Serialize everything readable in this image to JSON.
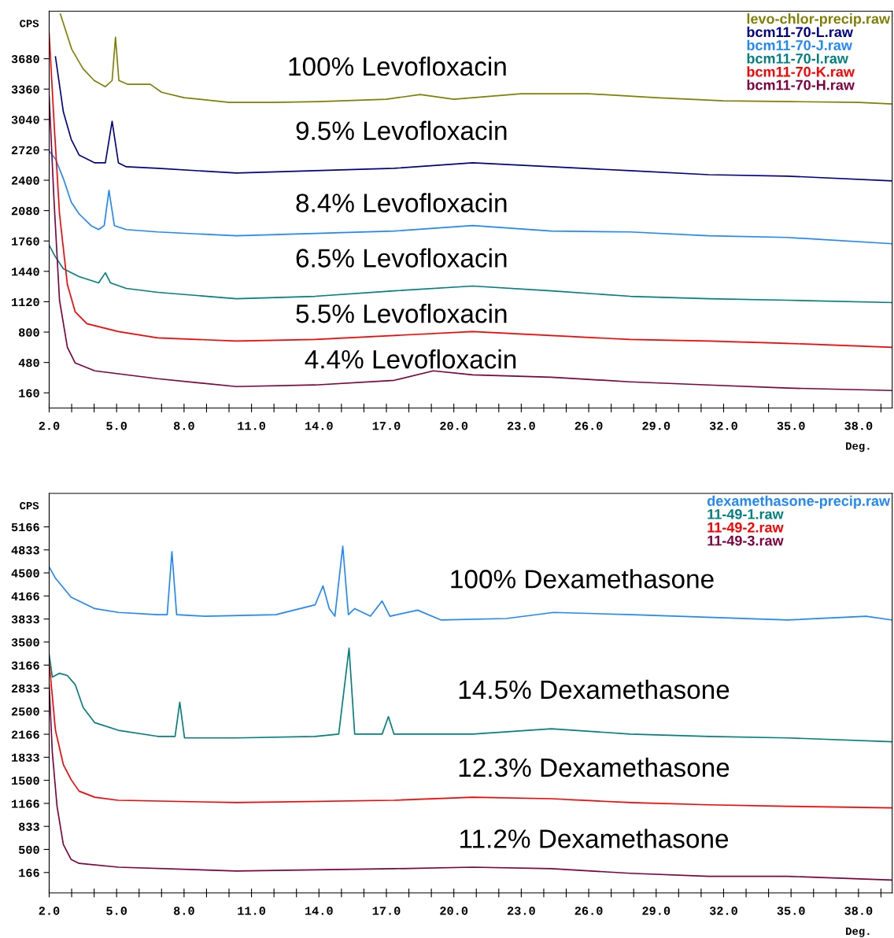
{
  "chart_data": [
    {
      "type": "line",
      "xlabel": "Deg.",
      "ylabel": "CPS",
      "legend": "top right",
      "grid": false,
      "xlim": [
        2.0,
        39.5
      ],
      "ylim": [
        0,
        4180
      ],
      "xticks": [
        {
          "value": 2,
          "label": "2.0"
        },
        {
          "value": 3,
          "label": null
        },
        {
          "value": 4,
          "label": null
        },
        {
          "value": 5,
          "label": "5.0"
        },
        {
          "value": 6,
          "label": null
        },
        {
          "value": 7,
          "label": null
        },
        {
          "value": 8,
          "label": "8.0"
        },
        {
          "value": 9,
          "label": null
        },
        {
          "value": 10,
          "label": null
        },
        {
          "value": 11,
          "label": "11.0"
        },
        {
          "value": 12,
          "label": null
        },
        {
          "value": 13,
          "label": null
        },
        {
          "value": 14,
          "label": "14.0"
        },
        {
          "value": 15,
          "label": null
        },
        {
          "value": 16,
          "label": null
        },
        {
          "value": 17,
          "label": "17.0"
        },
        {
          "value": 18,
          "label": null
        },
        {
          "value": 19,
          "label": null
        },
        {
          "value": 20,
          "label": "20.0"
        },
        {
          "value": 21,
          "label": null
        },
        {
          "value": 22,
          "label": null
        },
        {
          "value": 23,
          "label": "23.0"
        },
        {
          "value": 24,
          "label": null
        },
        {
          "value": 25,
          "label": null
        },
        {
          "value": 26,
          "label": "26.0"
        },
        {
          "value": 27,
          "label": null
        },
        {
          "value": 28,
          "label": null
        },
        {
          "value": 29,
          "label": "29.0"
        },
        {
          "value": 30,
          "label": null
        },
        {
          "value": 31,
          "label": null
        },
        {
          "value": 32,
          "label": "32.0"
        },
        {
          "value": 33,
          "label": null
        },
        {
          "value": 34,
          "label": null
        },
        {
          "value": 35,
          "label": "35.0"
        },
        {
          "value": 36,
          "label": null
        },
        {
          "value": 37,
          "label": null
        },
        {
          "value": 38,
          "label": "38.0"
        },
        {
          "value": 39,
          "label": null
        }
      ],
      "yticks": [
        160,
        480,
        800,
        1120,
        1440,
        1760,
        2080,
        2400,
        2720,
        3040,
        3360,
        3680
      ],
      "series": [
        {
          "name": "levo-chlor-precip.raw",
          "color": "#808000",
          "x": [
            2.5,
            3.0,
            3.5,
            4.0,
            4.5,
            4.8,
            4.95,
            5.1,
            5.5,
            6.0,
            6.5,
            7.0,
            8.0,
            10.0,
            12.0,
            14.0,
            17.0,
            18.5,
            20.0,
            23.0,
            26.0,
            29.0,
            32.0,
            35.0,
            38.0,
            39.5
          ],
          "values": [
            4150,
            3782,
            3576,
            3451,
            3385,
            3451,
            3906,
            3451,
            3410,
            3410,
            3410,
            3327,
            3270,
            3220,
            3220,
            3228,
            3253,
            3303,
            3253,
            3311,
            3311,
            3270,
            3236,
            3228,
            3220,
            3203
          ]
        },
        {
          "name": "bcm11-70-L.raw",
          "color": "#00008b",
          "x": [
            2.28,
            2.63,
            2.98,
            3.33,
            4.03,
            4.5,
            4.8,
            5.08,
            5.43,
            6.83,
            10.33,
            13.83,
            17.34,
            20.84,
            24.34,
            27.84,
            31.34,
            34.84,
            39.5
          ],
          "values": [
            3700,
            3121,
            2831,
            2666,
            2583,
            2583,
            3021,
            2583,
            2542,
            2525,
            2476,
            2500,
            2525,
            2583,
            2542,
            2500,
            2458,
            2443,
            2393
          ]
        },
        {
          "name": "bcm11-70-J.raw",
          "color": "#1e88ff",
          "x": [
            2.0,
            2.28,
            2.63,
            2.98,
            3.33,
            3.86,
            4.2,
            4.45,
            4.66,
            4.9,
            5.43,
            6.83,
            10.33,
            17.34,
            20.84,
            24.34,
            27.84,
            31.34,
            34.84,
            39.5
          ],
          "values": [
            2707,
            2624,
            2418,
            2170,
            2046,
            1922,
            1880,
            1922,
            2294,
            1922,
            1880,
            1855,
            1814,
            1864,
            1922,
            1864,
            1855,
            1814,
            1797,
            1731
          ]
        },
        {
          "name": "bcm11-70-I.raw",
          "color": "#008080",
          "x": [
            2.0,
            2.28,
            2.63,
            3.33,
            4.2,
            4.5,
            4.73,
            5.43,
            6.83,
            10.33,
            13.83,
            17.34,
            20.84,
            24.34,
            27.84,
            31.34,
            34.84,
            39.5
          ],
          "values": [
            1715,
            1591,
            1467,
            1384,
            1318,
            1425,
            1318,
            1260,
            1219,
            1152,
            1177,
            1235,
            1285,
            1235,
            1177,
            1152,
            1136,
            1111
          ]
        },
        {
          "name": "bcm11-70-K.raw",
          "color": "#ff0000",
          "x": [
            2.0,
            2.21,
            2.46,
            2.81,
            3.16,
            3.68,
            5.08,
            6.83,
            10.33,
            13.83,
            17.34,
            20.84,
            24.34,
            27.84,
            31.34,
            34.84,
            39.5
          ],
          "values": [
            3948,
            3038,
            2046,
            1301,
            1012,
            888,
            805,
            739,
            706,
            722,
            764,
            805,
            764,
            722,
            706,
            681,
            640
          ]
        },
        {
          "name": "bcm11-70-H.raw",
          "color": "#800040",
          "x": [
            2.0,
            2.21,
            2.46,
            2.81,
            3.16,
            4.03,
            6.83,
            10.33,
            13.83,
            17.34,
            19.09,
            20.84,
            24.34,
            27.84,
            31.34,
            34.84,
            39.5
          ],
          "values": [
            3286,
            2211,
            1136,
            640,
            474,
            392,
            309,
            226,
            243,
            292,
            392,
            350,
            325,
            276,
            243,
            210,
            185
          ]
        }
      ],
      "annotations": [
        "100% Levofloxacin",
        "9.5% Levofloxacin",
        "8.4% Levofloxacin",
        "6.5% Levofloxacin",
        "5.5% Levofloxacin",
        "4.4% Levofloxacin"
      ]
    },
    {
      "type": "line",
      "xlabel": "Deg.",
      "ylabel": "CPS",
      "legend": "top right",
      "grid": false,
      "xlim": [
        2.0,
        39.5
      ],
      "ylim": [
        -130,
        5650
      ],
      "xticks": [
        {
          "value": 2,
          "label": "2.0"
        },
        {
          "value": 3,
          "label": null
        },
        {
          "value": 4,
          "label": null
        },
        {
          "value": 5,
          "label": "5.0"
        },
        {
          "value": 6,
          "label": null
        },
        {
          "value": 7,
          "label": null
        },
        {
          "value": 8,
          "label": "8.0"
        },
        {
          "value": 9,
          "label": null
        },
        {
          "value": 10,
          "label": null
        },
        {
          "value": 11,
          "label": "11.0"
        },
        {
          "value": 12,
          "label": null
        },
        {
          "value": 13,
          "label": null
        },
        {
          "value": 14,
          "label": "14.0"
        },
        {
          "value": 15,
          "label": null
        },
        {
          "value": 16,
          "label": null
        },
        {
          "value": 17,
          "label": "17.0"
        },
        {
          "value": 18,
          "label": null
        },
        {
          "value": 19,
          "label": null
        },
        {
          "value": 20,
          "label": "20.0"
        },
        {
          "value": 21,
          "label": null
        },
        {
          "value": 22,
          "label": null
        },
        {
          "value": 23,
          "label": "23.0"
        },
        {
          "value": 24,
          "label": null
        },
        {
          "value": 25,
          "label": null
        },
        {
          "value": 26,
          "label": "26.0"
        },
        {
          "value": 27,
          "label": null
        },
        {
          "value": 28,
          "label": null
        },
        {
          "value": 29,
          "label": "29.0"
        },
        {
          "value": 30,
          "label": null
        },
        {
          "value": 31,
          "label": null
        },
        {
          "value": 32,
          "label": "32.0"
        },
        {
          "value": 33,
          "label": null
        },
        {
          "value": 34,
          "label": null
        },
        {
          "value": 35,
          "label": "35.0"
        },
        {
          "value": 36,
          "label": null
        },
        {
          "value": 37,
          "label": null
        },
        {
          "value": 38,
          "label": "38.0"
        },
        {
          "value": 39,
          "label": null
        }
      ],
      "yticks": [
        166,
        500,
        833,
        1166,
        1500,
        1833,
        2166,
        2500,
        2833,
        3166,
        3500,
        3833,
        4166,
        4500,
        4833,
        5166
      ],
      "series": [
        {
          "name": "dexamethasone-precip.raw",
          "color": "#1e88ff",
          "x": [
            2.0,
            2.28,
            2.98,
            4.03,
            5.08,
            6.83,
            7.25,
            7.46,
            7.67,
            8.93,
            12.08,
            13.83,
            14.18,
            14.46,
            14.71,
            15.06,
            15.31,
            15.59,
            16.29,
            16.81,
            17.16,
            18.39,
            19.44,
            22.34,
            24.44,
            27.94,
            34.84,
            38.34,
            39.5
          ],
          "values": [
            4588,
            4423,
            4148,
            3983,
            3928,
            3895,
            3895,
            4808,
            3895,
            3873,
            3895,
            4038,
            4313,
            3983,
            3873,
            4885,
            3895,
            3983,
            3873,
            4093,
            3873,
            3961,
            3818,
            3840,
            3928,
            3895,
            3818,
            3873,
            3818
          ]
        },
        {
          "name": "11-49-1.raw",
          "color": "#008080",
          "x": [
            2.0,
            2.14,
            2.46,
            2.81,
            3.16,
            3.51,
            4.03,
            5.08,
            6.83,
            7.6,
            7.81,
            8.02,
            10.33,
            13.83,
            14.88,
            15.34,
            15.59,
            16.81,
            17.09,
            17.34,
            20.84,
            24.34,
            27.84,
            31.34,
            34.84,
            39.5
          ],
          "values": [
            3323,
            2993,
            3048,
            3015,
            2883,
            2553,
            2333,
            2223,
            2135,
            2135,
            2630,
            2113,
            2113,
            2135,
            2168,
            3411,
            2168,
            2168,
            2421,
            2168,
            2168,
            2245,
            2168,
            2135,
            2113,
            2058
          ]
        },
        {
          "name": "11-49-2.raw",
          "color": "#ff0000",
          "x": [
            2.0,
            2.28,
            2.63,
            2.98,
            3.33,
            4.03,
            5.08,
            10.33,
            17.34,
            20.84,
            24.34,
            27.84,
            31.34,
            34.84,
            39.5
          ],
          "values": [
            3213,
            2223,
            1728,
            1508,
            1343,
            1255,
            1211,
            1178,
            1211,
            1255,
            1233,
            1178,
            1145,
            1123,
            1101
          ]
        },
        {
          "name": "11-49-3.raw",
          "color": "#800040",
          "x": [
            2.0,
            2.14,
            2.35,
            2.63,
            2.98,
            3.33,
            5.08,
            10.33,
            17.34,
            20.84,
            24.34,
            27.84,
            31.34,
            34.84,
            39.5
          ],
          "values": [
            2883,
            1903,
            1123,
            573,
            353,
            298,
            243,
            188,
            221,
            243,
            221,
            155,
            111,
            111,
            56
          ]
        }
      ],
      "annotations": [
        "100% Dexamethasone",
        "14.5% Dexamethasone",
        "12.3% Dexamethasone",
        "11.2% Dexamethasone"
      ]
    }
  ]
}
